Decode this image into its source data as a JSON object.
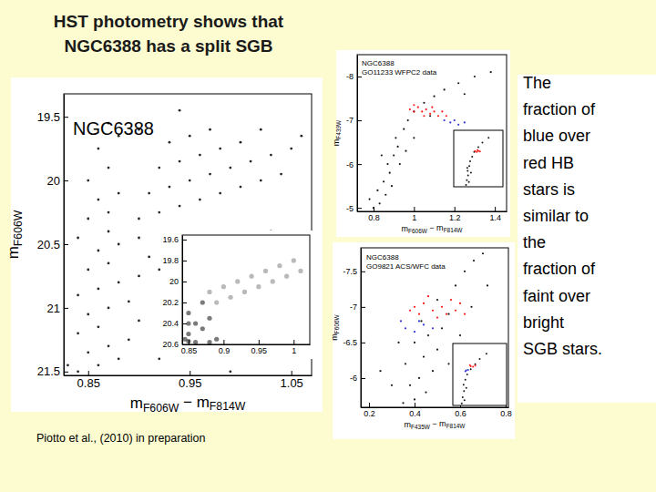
{
  "page": {
    "title": [
      "HST photometry shows that",
      "NGC6388 has a split SGB"
    ],
    "note": [
      "The",
      "fraction of",
      "blue over",
      "red HB",
      "stars is",
      "similar to",
      "the",
      "fraction of",
      "faint over",
      "bright",
      "SGB stars."
    ],
    "credit": "Piotto et al.,  (2010) in preparation"
  },
  "chart_data": [
    {
      "type": "scatter",
      "annotations": [
        "NGC6388"
      ],
      "xlabel": "mF606W − mF814W",
      "ylabel": "mF606W",
      "xlim": [
        0.826,
        1.07
      ],
      "ylim": [
        21.53,
        19.32
      ],
      "xticks": [
        0.85,
        0.95,
        1.05
      ],
      "yticks": [
        19.5,
        20,
        20.5,
        21,
        21.5
      ],
      "series": [
        {
          "color": "#000000",
          "x": [
            0.84,
            0.86,
            0.88,
            0.85,
            0.87,
            0.89,
            0.84,
            0.86,
            0.9,
            0.85,
            0.87,
            0.89,
            0.84,
            0.86,
            0.88,
            0.9,
            0.85,
            0.87,
            0.91,
            0.86,
            0.88,
            0.84,
            0.9,
            0.87,
            0.92,
            0.93,
            0.83,
            0.92,
            0.85,
            0.87,
            0.86,
            0.88,
            0.85,
            0.87,
            0.86,
            0.88,
            0.87,
            0.9,
            0.9,
            0.92,
            0.94,
            0.96,
            0.98,
            1.0,
            1.02,
            1.04,
            0.91,
            0.93,
            0.95,
            0.97,
            0.99,
            1.01,
            1.03,
            1.05,
            0.92,
            0.94,
            0.96,
            0.98,
            1.0,
            0.93,
            0.95,
            0.97,
            1.06,
            1.02,
            0.96,
            1.0,
            0.94,
            1.03,
            0.99
          ],
          "values": [
            21.5,
            21.45,
            21.4,
            21.35,
            21.3,
            21.25,
            21.2,
            21.15,
            21.1,
            21.05,
            21.0,
            20.95,
            20.9,
            20.85,
            20.8,
            20.75,
            20.7,
            20.65,
            20.6,
            20.55,
            20.5,
            20.45,
            20.45,
            20.4,
            21.4,
            21.0,
            21.45,
            20.7,
            20.3,
            20.25,
            20.15,
            20.1,
            20.0,
            19.9,
            19.75,
            19.65,
            19.55,
            19.6,
            20.3,
            20.25,
            20.2,
            20.15,
            20.1,
            20.05,
            20.0,
            19.95,
            20.1,
            20.05,
            20.0,
            19.95,
            19.9,
            19.85,
            19.8,
            19.75,
            19.9,
            19.85,
            19.8,
            19.75,
            19.7,
            19.7,
            19.65,
            19.6,
            19.65,
            19.6,
            21.2,
            20.8,
            19.45,
            20.4,
            21.5
          ]
        }
      ]
    },
    {
      "type": "scatter",
      "xlim": [
        0.841,
        1.023
      ],
      "ylim": [
        20.6,
        19.557
      ],
      "xticks": [
        0.85,
        0.9,
        0.95,
        1
      ],
      "yticks": [
        19.6,
        19.8,
        20,
        20.2,
        20.4,
        20.6
      ],
      "series": [
        {
          "color": "#222222",
          "x": [
            0.85,
            0.85,
            0.86,
            0.85,
            0.87,
            0.86,
            0.87,
            0.88,
            0.845,
            0.89,
            0.85,
            0.88
          ],
          "values": [
            20.57,
            20.5,
            20.4,
            20.3,
            20.2,
            20.58,
            20.45,
            20.35,
            20.55,
            20.55,
            20.4,
            20.58
          ]
        },
        {
          "color": "#8a8a8a",
          "x": [
            0.88,
            0.9,
            0.92,
            0.94,
            0.96,
            0.98,
            1.0,
            0.89,
            0.91,
            0.93,
            0.95,
            0.97,
            0.99,
            1.01
          ],
          "values": [
            20.1,
            20.05,
            20.0,
            19.95,
            19.9,
            19.85,
            19.8,
            20.2,
            20.15,
            20.1,
            20.05,
            20.0,
            19.95,
            19.9
          ]
        }
      ]
    },
    {
      "type": "scatter",
      "annotations": [
        "NGC6388",
        "GO11233 WFPC2 data"
      ],
      "xlabel": "mF606W − mF814W",
      "ylabel": "mF439W",
      "xlim": [
        0.719,
        1.458
      ],
      "ylim": [
        -4.92,
        -8.5
      ],
      "xticks": [
        0.8,
        1,
        1.2,
        1.4
      ],
      "yticks": [
        -8,
        -7,
        -6,
        -5
      ],
      "series": [
        {
          "color": "#000000",
          "x": [
            0.8,
            0.83,
            0.86,
            0.85,
            0.88,
            0.87,
            0.9,
            0.92,
            0.91,
            0.95,
            0.97,
            1.0,
            1.05,
            1.1,
            1.15,
            1.22,
            1.3,
            1.38,
            0.82,
            0.89,
            0.93,
            0.84,
            1.0,
            0.78,
            0.96,
            1.08,
            1.25
          ],
          "values": [
            -5.0,
            -5.1,
            -5.3,
            -5.6,
            -5.8,
            -6.0,
            -6.2,
            -6.4,
            -6.6,
            -6.8,
            -7.0,
            -7.2,
            -7.4,
            -7.55,
            -7.7,
            -7.85,
            -8.0,
            -8.1,
            -5.4,
            -5.5,
            -6.0,
            -6.2,
            -6.6,
            -5.2,
            -6.3,
            -7.1,
            -7.6
          ]
        },
        {
          "color": "#ff0000",
          "x": [
            0.98,
            1.0,
            1.02,
            1.04,
            1.06,
            1.08,
            1.1,
            1.12,
            1.14,
            1.16,
            1.0,
            1.05,
            1.09
          ],
          "values": [
            -7.25,
            -7.2,
            -7.3,
            -7.2,
            -7.25,
            -7.15,
            -7.2,
            -7.1,
            -7.2,
            -7.1,
            -7.35,
            -7.1,
            -7.3
          ]
        },
        {
          "color": "#2020d0",
          "x": [
            1.15,
            1.18,
            1.2,
            1.22,
            1.25
          ],
          "values": [
            -7.0,
            -6.95,
            -7.0,
            -6.9,
            -6.95
          ]
        }
      ]
    },
    {
      "type": "scatter",
      "tick_labels": false,
      "xlim": [
        0.5,
        1.7
      ],
      "ylim": [
        21,
        15
      ],
      "series": [
        {
          "color": "#000000",
          "x": [
            0.8,
            0.82,
            0.85,
            0.84,
            0.88,
            0.9,
            0.95,
            1.0,
            1.1,
            1.2,
            1.35,
            0.87,
            0.83,
            0.92
          ],
          "values": [
            20.8,
            20.3,
            19.8,
            19.3,
            18.8,
            18.3,
            17.8,
            17.3,
            16.8,
            16.3,
            15.8,
            20.5,
            19.0,
            19.5
          ]
        },
        {
          "color": "#ff0000",
          "x": [
            1.02,
            1.06,
            1.1,
            1.14,
            1.08
          ],
          "values": [
            17.2,
            17.3,
            17.2,
            17.25,
            17.1
          ]
        }
      ]
    },
    {
      "type": "scatter",
      "annotations": [
        "NGC6388",
        "GO9821 ACS/WFC data"
      ],
      "xlabel": "mF435W − mF814W",
      "ylabel": "mF606W",
      "xlim": [
        0.164,
        0.812
      ],
      "ylim": [
        -5.59,
        -7.83
      ],
      "xticks": [
        0.2,
        0.4,
        0.6,
        0.8
      ],
      "yticks": [
        -7.5,
        -7,
        -6.5,
        -6
      ],
      "series": [
        {
          "color": "#000000",
          "x": [
            0.35,
            0.4,
            0.45,
            0.38,
            0.42,
            0.48,
            0.36,
            0.44,
            0.5,
            0.4,
            0.46,
            0.52,
            0.43,
            0.55,
            0.5,
            0.58,
            0.62,
            0.66,
            0.7,
            0.3,
            0.55,
            0.6,
            0.33,
            0.65,
            0.25,
            0.72
          ],
          "values": [
            -5.65,
            -5.7,
            -5.8,
            -5.9,
            -6.0,
            -6.1,
            -6.2,
            -6.3,
            -6.4,
            -6.5,
            -6.6,
            -6.7,
            -6.8,
            -6.9,
            -7.1,
            -7.3,
            -7.5,
            -7.65,
            -7.75,
            -5.9,
            -6.2,
            -6.6,
            -6.5,
            -7.0,
            -6.1,
            -7.3
          ]
        },
        {
          "color": "#ff0000",
          "x": [
            0.4,
            0.44,
            0.48,
            0.52,
            0.56,
            0.6,
            0.42,
            0.46,
            0.5,
            0.54,
            0.58,
            0.62,
            0.38
          ],
          "values": [
            -7.0,
            -7.05,
            -6.95,
            -7.0,
            -7.1,
            -7.05,
            -6.9,
            -7.15,
            -6.85,
            -6.9,
            -6.95,
            -6.9,
            -6.95
          ]
        },
        {
          "color": "#2020d0",
          "x": [
            0.36,
            0.4,
            0.44,
            0.48,
            0.34,
            0.42
          ],
          "values": [
            -6.7,
            -6.65,
            -6.75,
            -6.7,
            -6.8,
            -6.8
          ]
        }
      ]
    },
    {
      "type": "scatter",
      "tick_labels": false,
      "xlim": [
        0.1,
        1.3
      ],
      "ylim": [
        21,
        15
      ],
      "series": [
        {
          "color": "#000000",
          "x": [
            0.3,
            0.32,
            0.35,
            0.34,
            0.38,
            0.42,
            0.5,
            0.6,
            0.7,
            0.85,
            0.36,
            0.4
          ],
          "values": [
            20.8,
            20.2,
            19.6,
            19.0,
            18.5,
            18.0,
            17.5,
            17.0,
            16.5,
            16.0,
            20.5,
            19.3
          ]
        },
        {
          "color": "#ff0000",
          "x": [
            0.5,
            0.55,
            0.6,
            0.48
          ],
          "values": [
            17.2,
            17.25,
            17.15,
            17.1
          ]
        },
        {
          "color": "#2020d0",
          "x": [
            0.4,
            0.44,
            0.38
          ],
          "values": [
            17.6,
            17.55,
            17.7
          ]
        }
      ]
    }
  ]
}
